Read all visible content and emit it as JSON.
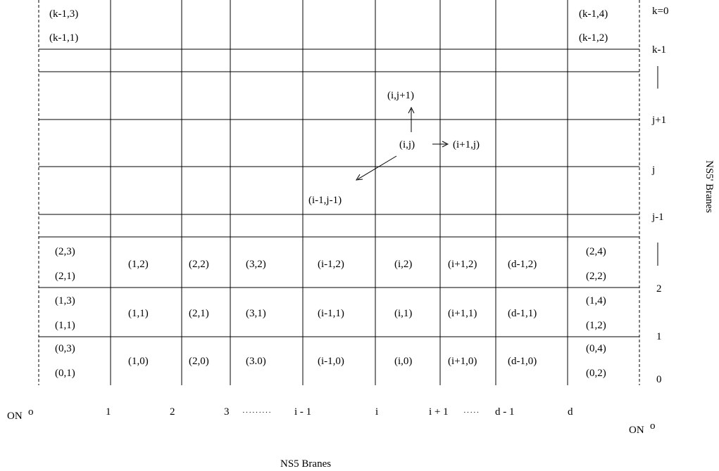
{
  "grid": {
    "rows": [
      {
        "cells": [
          "",
          "",
          "",
          "",
          "",
          "",
          "",
          "",
          ""
        ]
      },
      {
        "cells": [
          "(2,1)",
          "(1,2)",
          "(2,2)",
          "(3,2)",
          "(i-1,2)",
          "(i,2)",
          "(i+1,2)",
          "(d-1,2)",
          "(2,2)"
        ],
        "top_left": "(2,3)",
        "top_right": "(2,4)"
      },
      {
        "cells": [
          "(1,1)",
          "(1,1)",
          "(2,1)",
          "(3,1)",
          "(i-1,1)",
          "(i,1)",
          "(i+1,1)",
          "(d-1,1)",
          "(1,2)"
        ],
        "top_left": "(1,3)",
        "top_right": "(1,4)"
      },
      {
        "cells": [
          "(0,1)",
          "(1,0)",
          "(2,0)",
          "(3.0)",
          "(i-1,0)",
          "(i,0)",
          "(i+1,0)",
          "(d-1,0)",
          "(0,2)"
        ],
        "top_left": "(0,3)",
        "top_right": "(0,4)"
      }
    ],
    "top_row": {
      "top_left": "(k-1,3)",
      "bottom_left": "(k-1,1)",
      "top_right": "(k-1,4)",
      "bottom_right": "(k-1,2)"
    },
    "center": {
      "node": "(i,j)",
      "up": "(i,j+1)",
      "right": "(i+1,j)",
      "down_left": "(i-1,j-1)"
    }
  },
  "row_labels": {
    "k0": "k=0",
    "km1": "k-1",
    "jp1": "j+1",
    "j": "j",
    "jm1": "j-1",
    "two": "2",
    "one": "1",
    "zero": "0",
    "vbar_upper": "|",
    "vbar_lower": "|"
  },
  "column_labels": {
    "on_left": "ON",
    "on_left_sup": "o",
    "c1": "1",
    "c2": "2",
    "c3": "3",
    "dots1": "·········",
    "c_im1": "i - 1",
    "c_i": "i",
    "c_ip1": "i + 1",
    "dots2": "·····",
    "c_dm1": "d - 1",
    "c_d": "d",
    "on_right": "ON",
    "on_right_sup": "o"
  },
  "axis_titles": {
    "bottom": "NS5 Branes",
    "right": "NS5' Branes"
  }
}
